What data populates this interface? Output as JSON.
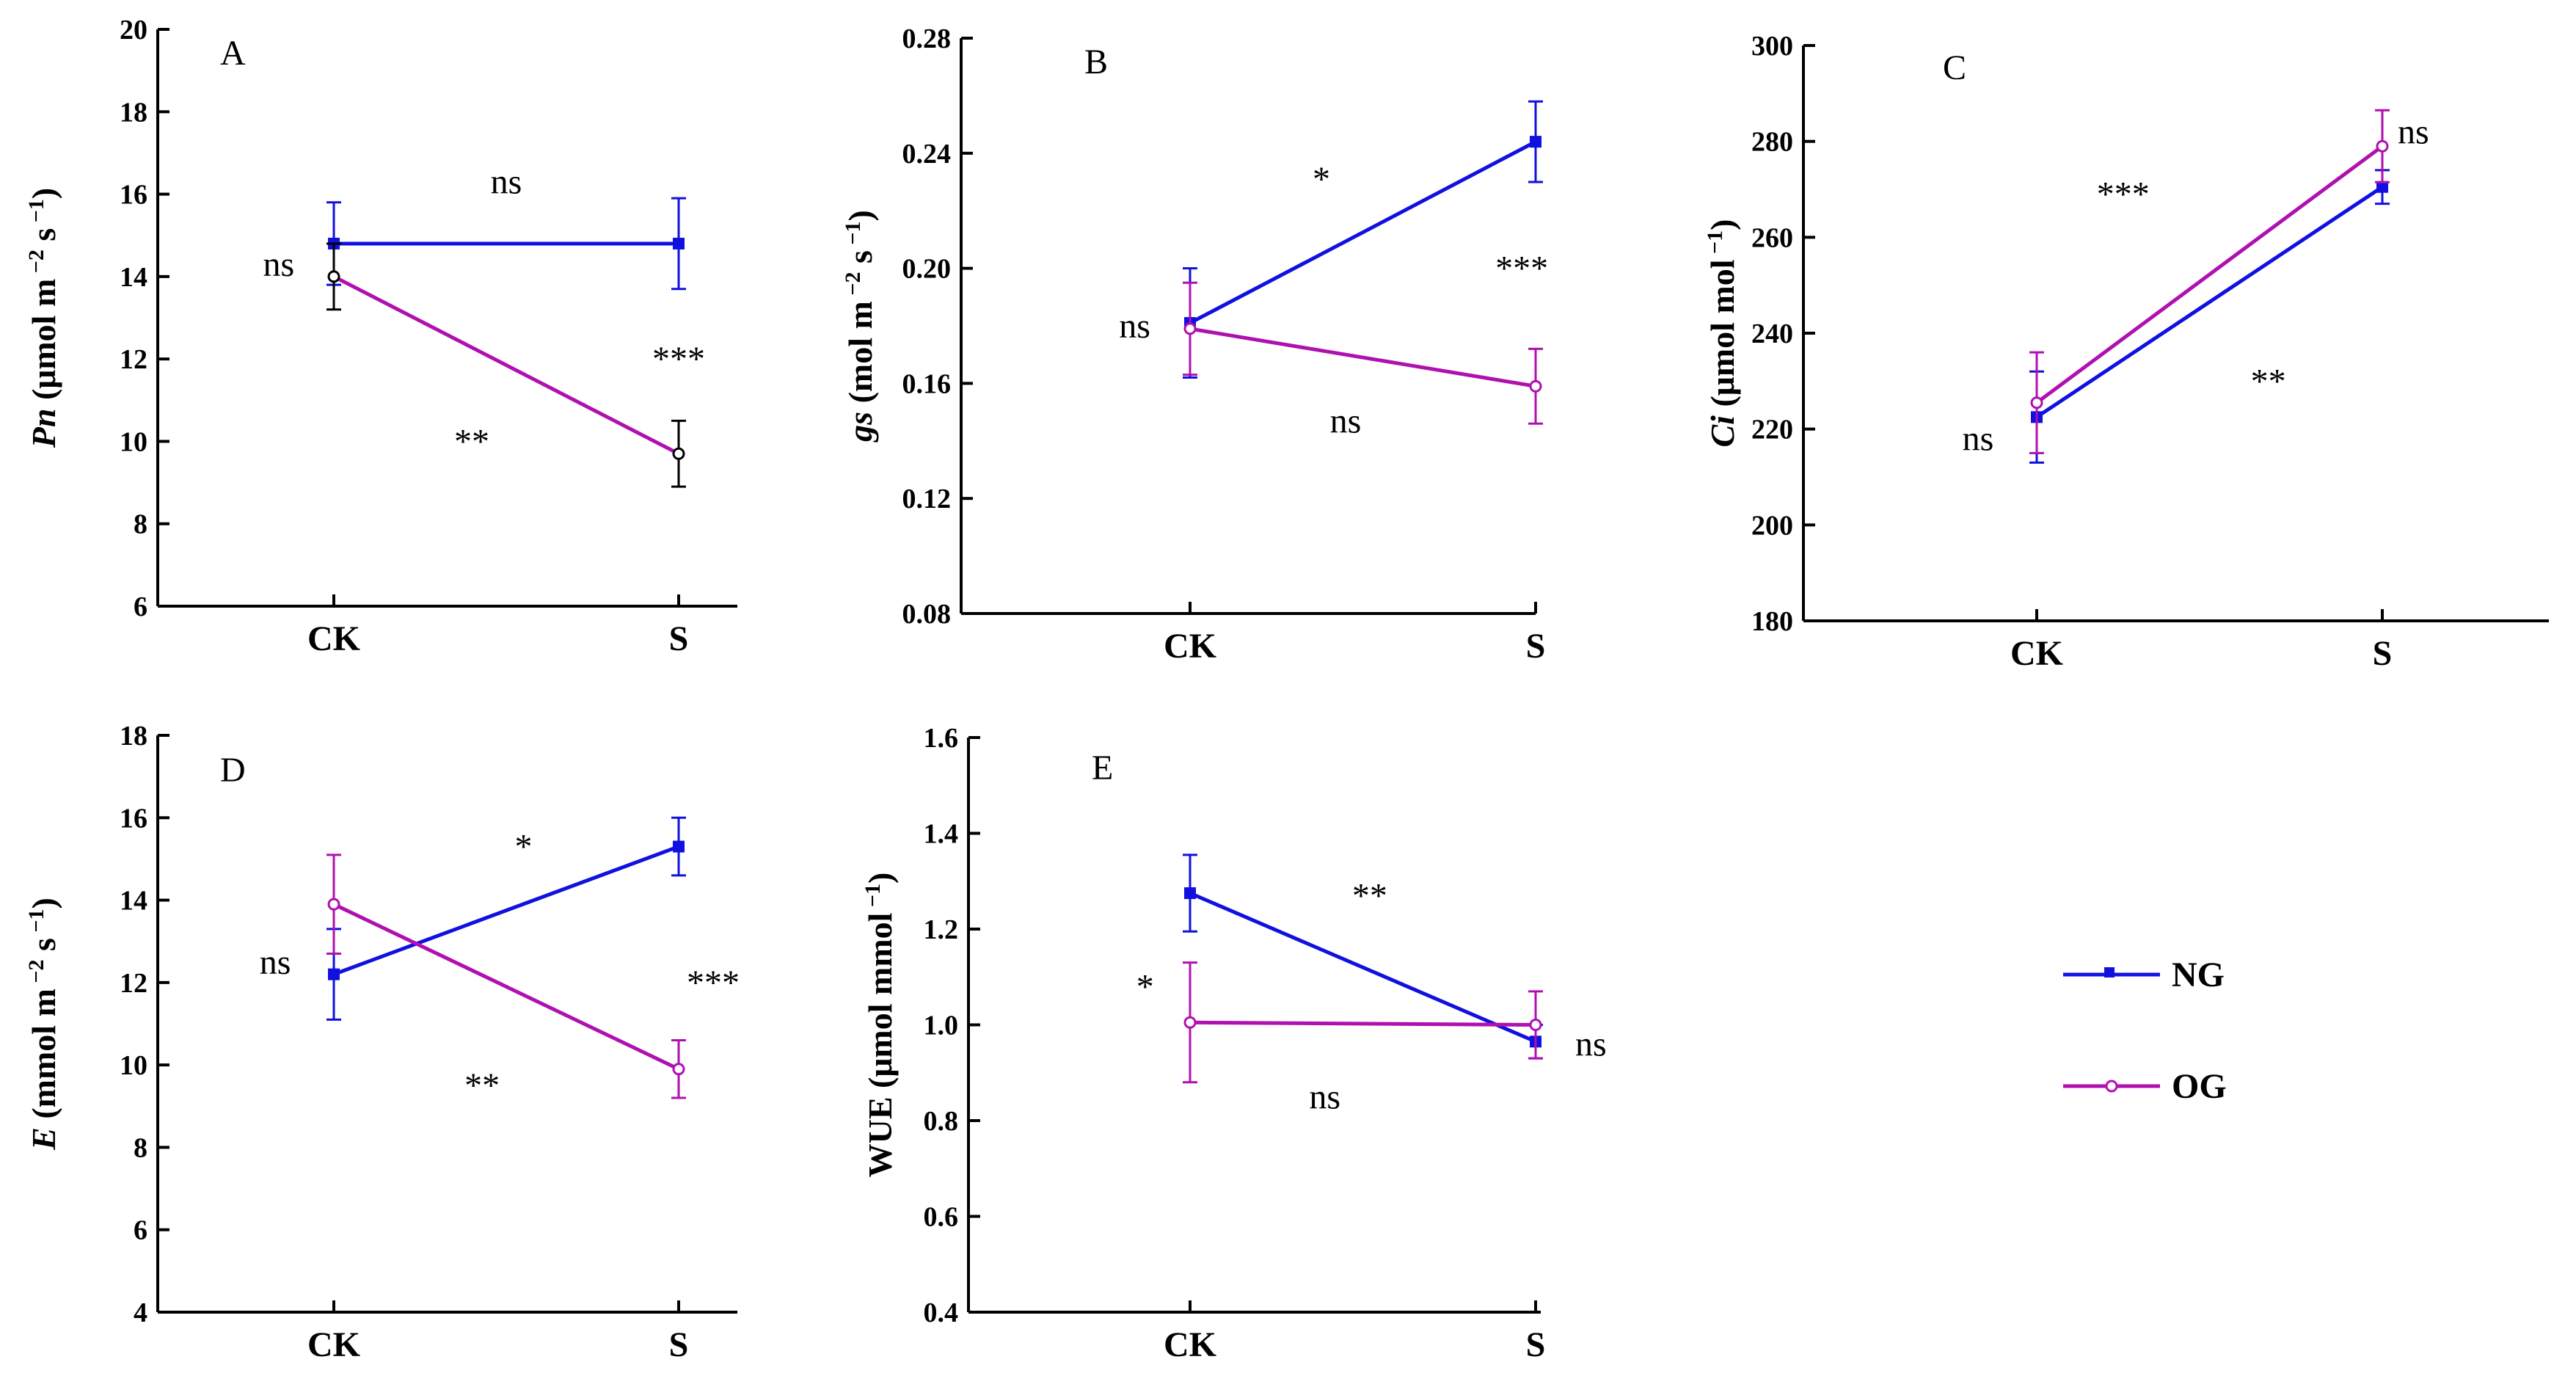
{
  "series_styles": {
    "NG": {
      "color": "#1010e0",
      "marker": "filled-square"
    },
    "OG": {
      "color": "#b010b0",
      "marker": "open-circle"
    }
  },
  "legend": [
    {
      "name": "NG"
    },
    {
      "name": "OG"
    }
  ],
  "chart_data": [
    {
      "panel": "A",
      "type": "line",
      "categories": [
        "CK",
        "S"
      ],
      "ylabel_parts": [
        {
          "text": "Pn",
          "italic": true
        },
        {
          "text": "  (μmol m",
          "italic": false
        },
        {
          "text": " −2",
          "sup": true
        },
        {
          "text": " s",
          "italic": false
        },
        {
          "text": " −1",
          "sup": true
        },
        {
          "text": ")",
          "italic": false
        }
      ],
      "ylim": [
        6,
        20
      ],
      "yticks": [
        "6",
        "8",
        "10",
        "12",
        "14",
        "16",
        "18",
        "20"
      ],
      "series": [
        {
          "name": "NG",
          "values": [
            14.8,
            14.8
          ],
          "errors": [
            1.0,
            1.1
          ]
        },
        {
          "name": "OG",
          "values": [
            14.0,
            9.7
          ],
          "errors": [
            0.8,
            0.8
          ],
          "error_color": "#000000"
        }
      ],
      "annotations": [
        {
          "text": "ns",
          "x": 0.5,
          "y": 16.3
        },
        {
          "text": "ns",
          "x": -0.16,
          "y": 14.3
        },
        {
          "text": "***",
          "x": 1.0,
          "y": 12.0
        },
        {
          "text": "**",
          "x": 0.4,
          "y": 10.0
        }
      ]
    },
    {
      "panel": "B",
      "type": "line",
      "categories": [
        "CK",
        "S"
      ],
      "ylabel_parts": [
        {
          "text": "gs",
          "italic": true
        },
        {
          "text": " (mol m",
          "italic": false
        },
        {
          "text": " −2",
          "sup": true
        },
        {
          "text": " s",
          "italic": false
        },
        {
          "text": " −1",
          "sup": true
        },
        {
          "text": ")",
          "italic": false
        }
      ],
      "ylim": [
        0.08,
        0.28
      ],
      "yticks": [
        "0.08",
        "0.12",
        "0.16",
        "0.20",
        "0.24",
        "0.28"
      ],
      "series": [
        {
          "name": "NG",
          "values": [
            0.181,
            0.244
          ],
          "errors": [
            0.019,
            0.014
          ]
        },
        {
          "name": "OG",
          "values": [
            0.179,
            0.159
          ],
          "errors": [
            0.016,
            0.013
          ]
        }
      ],
      "annotations": [
        {
          "text": "*",
          "x": 0.38,
          "y": 0.231
        },
        {
          "text": "***",
          "x": 0.96,
          "y": 0.2
        },
        {
          "text": "ns",
          "x": -0.16,
          "y": 0.18
        },
        {
          "text": "ns",
          "x": 0.45,
          "y": 0.147
        }
      ]
    },
    {
      "panel": "C",
      "type": "line",
      "categories": [
        "CK",
        "S"
      ],
      "ylabel_parts": [
        {
          "text": "Ci",
          "italic": true
        },
        {
          "text": " (μmol mol",
          "italic": false
        },
        {
          "text": " −1",
          "sup": true
        },
        {
          "text": ")",
          "italic": false
        }
      ],
      "ylim": [
        180,
        300
      ],
      "yticks": [
        "180",
        "200",
        "220",
        "240",
        "260",
        "280",
        "300"
      ],
      "series": [
        {
          "name": "NG",
          "values": [
            222.5,
            270.5
          ],
          "errors": [
            9.5,
            3.5
          ]
        },
        {
          "name": "OG",
          "values": [
            225.5,
            279.0
          ],
          "errors": [
            10.5,
            7.5
          ]
        }
      ],
      "annotations": [
        {
          "text": "***",
          "x": 0.25,
          "y": 269
        },
        {
          "text": "**",
          "x": 0.67,
          "y": 230
        },
        {
          "text": "ns",
          "x": -0.17,
          "y": 218
        },
        {
          "text": "ns",
          "x": 1.09,
          "y": 282
        }
      ]
    },
    {
      "panel": "D",
      "type": "line",
      "categories": [
        "CK",
        "S"
      ],
      "ylabel_parts": [
        {
          "text": "E",
          "italic": true
        },
        {
          "text": " (mmol m",
          "italic": false
        },
        {
          "text": " −2",
          "sup": true
        },
        {
          "text": " s",
          "italic": false
        },
        {
          "text": " −1",
          "sup": true
        },
        {
          "text": ")",
          "italic": false
        }
      ],
      "ylim": [
        4,
        18
      ],
      "yticks": [
        "4",
        "6",
        "8",
        "10",
        "12",
        "14",
        "16",
        "18"
      ],
      "series": [
        {
          "name": "NG",
          "values": [
            12.2,
            15.3
          ],
          "errors": [
            1.1,
            0.7
          ]
        },
        {
          "name": "OG",
          "values": [
            13.9,
            9.9
          ],
          "errors": [
            1.2,
            0.7
          ]
        }
      ],
      "annotations": [
        {
          "text": "*",
          "x": 0.55,
          "y": 15.3
        },
        {
          "text": "ns",
          "x": -0.17,
          "y": 12.5
        },
        {
          "text": "***",
          "x": 1.1,
          "y": 12.0
        },
        {
          "text": "**",
          "x": 0.43,
          "y": 9.5
        }
      ]
    },
    {
      "panel": "E",
      "type": "line",
      "categories": [
        "CK",
        "S"
      ],
      "ylabel_parts": [
        {
          "text": "WUE",
          "italic": false
        },
        {
          "text": " (μmol mmol",
          "italic": false
        },
        {
          "text": " −1",
          "sup": true
        },
        {
          "text": ")",
          "italic": false
        }
      ],
      "ylim": [
        0.4,
        1.6
      ],
      "yticks": [
        "0.4",
        "0.6",
        "0.8",
        "1.0",
        "1.2",
        "1.4",
        "1.6"
      ],
      "series": [
        {
          "name": "NG",
          "values": [
            1.275,
            0.965
          ],
          "errors": [
            0.08,
            0.035
          ]
        },
        {
          "name": "OG",
          "values": [
            1.005,
            1.0
          ],
          "errors": [
            0.125,
            0.07
          ]
        }
      ],
      "annotations": [
        {
          "text": "**",
          "x": 0.52,
          "y": 1.27
        },
        {
          "text": "*",
          "x": -0.13,
          "y": 1.08
        },
        {
          "text": "ns",
          "x": 0.39,
          "y": 0.85
        },
        {
          "text": "ns",
          "x": 1.16,
          "y": 0.96
        }
      ]
    }
  ]
}
